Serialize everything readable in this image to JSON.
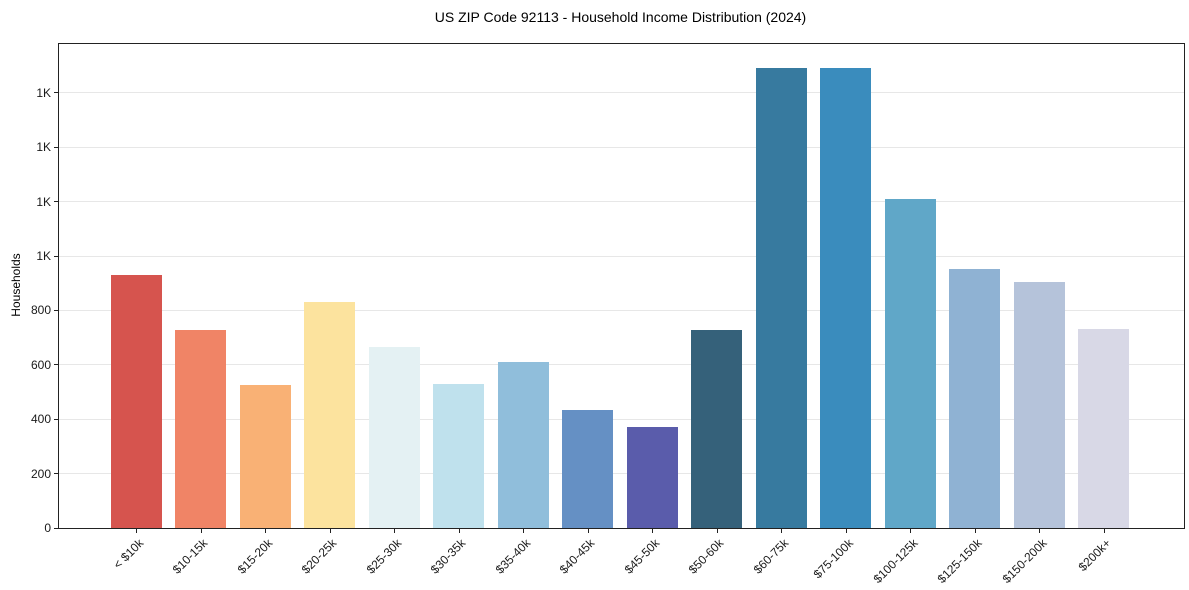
{
  "figure": {
    "title": "US ZIP Code 92113 - Household Income Distribution (2024)",
    "y_axis_label": "Households",
    "background_color": "#ffffff",
    "spine_color": "#222222",
    "gridline_color": "#e7e7e7"
  },
  "chart_data": {
    "type": "bar",
    "title": "US ZIP Code 92113 - Household Income Distribution (2024)",
    "xlabel": "",
    "ylabel": "Households",
    "categories": [
      "< $10k",
      "$10-15k",
      "$15-20k",
      "$20-25k",
      "$25-30k",
      "$30-35k",
      "$35-40k",
      "$40-45k",
      "$45-50k",
      "$50-60k",
      "$60-75k",
      "$75-100k",
      "$100-125k",
      "$125-150k",
      "$150-200k",
      "$200k+"
    ],
    "values": [
      930,
      727,
      527,
      832,
      666,
      530,
      611,
      435,
      373,
      729,
      1690,
      1690,
      1211,
      953,
      904,
      733
    ],
    "bar_colors": [
      "#d6544e",
      "#f08466",
      "#f9b175",
      "#fce39e",
      "#e4f1f3",
      "#bfe1ed",
      "#90bedb",
      "#6590c4",
      "#5a5cab",
      "#35617a",
      "#377a9f",
      "#3a8cbd",
      "#60a7c8",
      "#8fb2d3",
      "#b5c3da",
      "#d8d8e6"
    ],
    "ylim": [
      0,
      1780
    ],
    "yticks": [
      {
        "value": 0,
        "label": "0"
      },
      {
        "value": 200,
        "label": "200"
      },
      {
        "value": 400,
        "label": "400"
      },
      {
        "value": 600,
        "label": "600"
      },
      {
        "value": 800,
        "label": "800"
      },
      {
        "value": 1000,
        "label": "1K"
      },
      {
        "value": 1200,
        "label": "1K"
      },
      {
        "value": 1400,
        "label": "1K"
      },
      {
        "value": 1600,
        "label": "1K"
      }
    ],
    "grid": true,
    "legend": "none",
    "x_tick_rotation_deg": 45
  }
}
